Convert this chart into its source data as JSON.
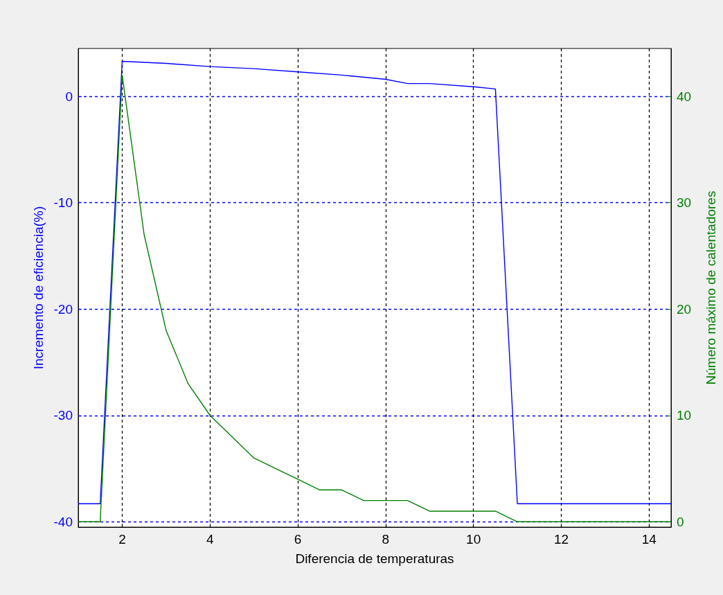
{
  "chart_data": {
    "type": "line",
    "xlabel": "Diferencia de temperaturas",
    "ylabel": "Incremento de eficiencia(%)",
    "y2label": "Número máximo de calentadores",
    "xlim": [
      1,
      14.5
    ],
    "xticks": [
      2,
      4,
      6,
      8,
      10,
      12,
      14
    ],
    "ylim": [
      -40.5,
      4.5
    ],
    "yticks": [
      -40,
      -30,
      -20,
      -10,
      0
    ],
    "y2lim": [
      -0.5,
      44.5
    ],
    "y2ticks": [
      0,
      10,
      20,
      30,
      40
    ],
    "grid": true,
    "line_style": "solid",
    "marker": "none",
    "series": [
      {
        "color": "#0000ff",
        "x": [
          1,
          1.5,
          2,
          3,
          4,
          5,
          6,
          7,
          8,
          8.5,
          9,
          10,
          10.5,
          11,
          12,
          13,
          14.5
        ],
        "values": [
          -38.3,
          -38.3,
          3.3,
          3.1,
          2.8,
          2.6,
          2.3,
          2.0,
          1.6,
          1.2,
          1.2,
          0.9,
          0.7,
          -38.3,
          -38.3,
          -38.3,
          -38.3
        ]
      },
      {
        "color": "#008000",
        "axis": "y2",
        "x": [
          1,
          1.5,
          2,
          2.5,
          3,
          3.5,
          4,
          4.5,
          5,
          5.5,
          6,
          6.5,
          7,
          7.5,
          8,
          8.5,
          9,
          9.5,
          10,
          10.5,
          11,
          12,
          13,
          14.5
        ],
        "values": [
          0,
          0,
          42,
          27,
          18,
          13,
          10,
          8,
          6,
          5,
          4,
          3,
          3,
          2,
          2,
          2,
          1,
          1,
          1,
          1,
          0,
          0,
          0,
          0
        ]
      }
    ]
  }
}
